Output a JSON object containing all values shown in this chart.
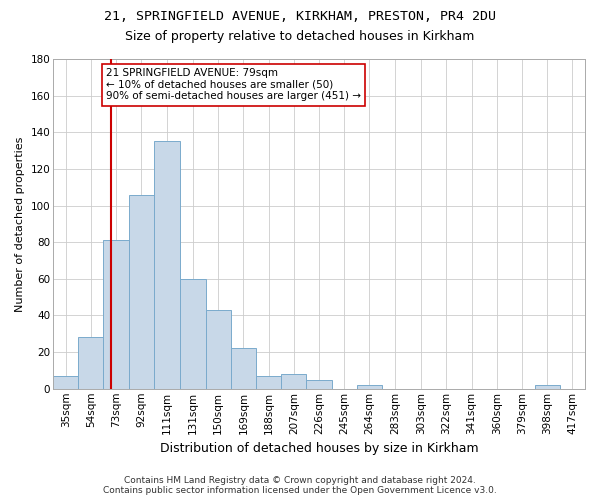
{
  "title_line1": "21, SPRINGFIELD AVENUE, KIRKHAM, PRESTON, PR4 2DU",
  "title_line2": "Size of property relative to detached houses in Kirkham",
  "xlabel": "Distribution of detached houses by size in Kirkham",
  "ylabel": "Number of detached properties",
  "bin_labels": [
    "35sqm",
    "54sqm",
    "73sqm",
    "92sqm",
    "111sqm",
    "131sqm",
    "150sqm",
    "169sqm",
    "188sqm",
    "207sqm",
    "226sqm",
    "245sqm",
    "264sqm",
    "283sqm",
    "303sqm",
    "322sqm",
    "341sqm",
    "360sqm",
    "379sqm",
    "398sqm",
    "417sqm"
  ],
  "bar_heights": [
    7,
    28,
    81,
    106,
    135,
    60,
    43,
    22,
    7,
    8,
    5,
    0,
    2,
    0,
    0,
    0,
    0,
    0,
    0,
    2,
    0
  ],
  "bar_color": "#c8d8e8",
  "bar_edgecolor": "#7aaacc",
  "vline_x": 79,
  "vline_color": "#cc0000",
  "ylim": [
    0,
    180
  ],
  "yticks": [
    0,
    20,
    40,
    60,
    80,
    100,
    120,
    140,
    160,
    180
  ],
  "bin_edges": [
    35,
    54,
    73,
    92,
    111,
    131,
    150,
    169,
    188,
    207,
    226,
    245,
    264,
    283,
    303,
    322,
    341,
    360,
    379,
    398,
    417,
    436
  ],
  "annotation_text": "21 SPRINGFIELD AVENUE: 79sqm\n← 10% of detached houses are smaller (50)\n90% of semi-detached houses are larger (451) →",
  "annotation_box_edgecolor": "#cc0000",
  "footer_line1": "Contains HM Land Registry data © Crown copyright and database right 2024.",
  "footer_line2": "Contains public sector information licensed under the Open Government Licence v3.0.",
  "bg_color": "#ffffff",
  "grid_color": "#cccccc",
  "title1_fontsize": 9.5,
  "title2_fontsize": 9,
  "xlabel_fontsize": 9,
  "ylabel_fontsize": 8,
  "tick_fontsize": 7.5,
  "footer_fontsize": 6.5,
  "ann_fontsize": 7.5
}
